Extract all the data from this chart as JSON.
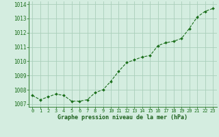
{
  "x": [
    0,
    1,
    2,
    3,
    4,
    5,
    6,
    7,
    8,
    9,
    10,
    11,
    12,
    13,
    14,
    15,
    16,
    17,
    18,
    19,
    20,
    21,
    22,
    23
  ],
  "y": [
    1007.6,
    1007.3,
    1007.5,
    1007.7,
    1007.6,
    1007.2,
    1007.2,
    1007.3,
    1007.8,
    1008.0,
    1008.6,
    1009.3,
    1009.9,
    1010.1,
    1010.3,
    1010.4,
    1011.1,
    1011.3,
    1011.4,
    1011.6,
    1012.3,
    1013.1,
    1013.5,
    1013.7
  ],
  "line_color": "#1a6e1a",
  "marker_color": "#1a6e1a",
  "bg_color": "#d4ede0",
  "grid_color": "#aacfba",
  "xlabel": "Graphe pression niveau de la mer (hPa)",
  "xlabel_color": "#1a5e1a",
  "tick_color": "#1a6e1a",
  "ylim": [
    1006.8,
    1014.2
  ],
  "xlim": [
    -0.5,
    23.5
  ],
  "yticks": [
    1007,
    1008,
    1009,
    1010,
    1011,
    1012,
    1013,
    1014
  ],
  "xticks": [
    0,
    1,
    2,
    3,
    4,
    5,
    6,
    7,
    8,
    9,
    10,
    11,
    12,
    13,
    14,
    15,
    16,
    17,
    18,
    19,
    20,
    21,
    22,
    23
  ],
  "ytick_fontsize": 5.5,
  "xtick_fontsize": 5.0,
  "xlabel_fontsize": 6.0
}
